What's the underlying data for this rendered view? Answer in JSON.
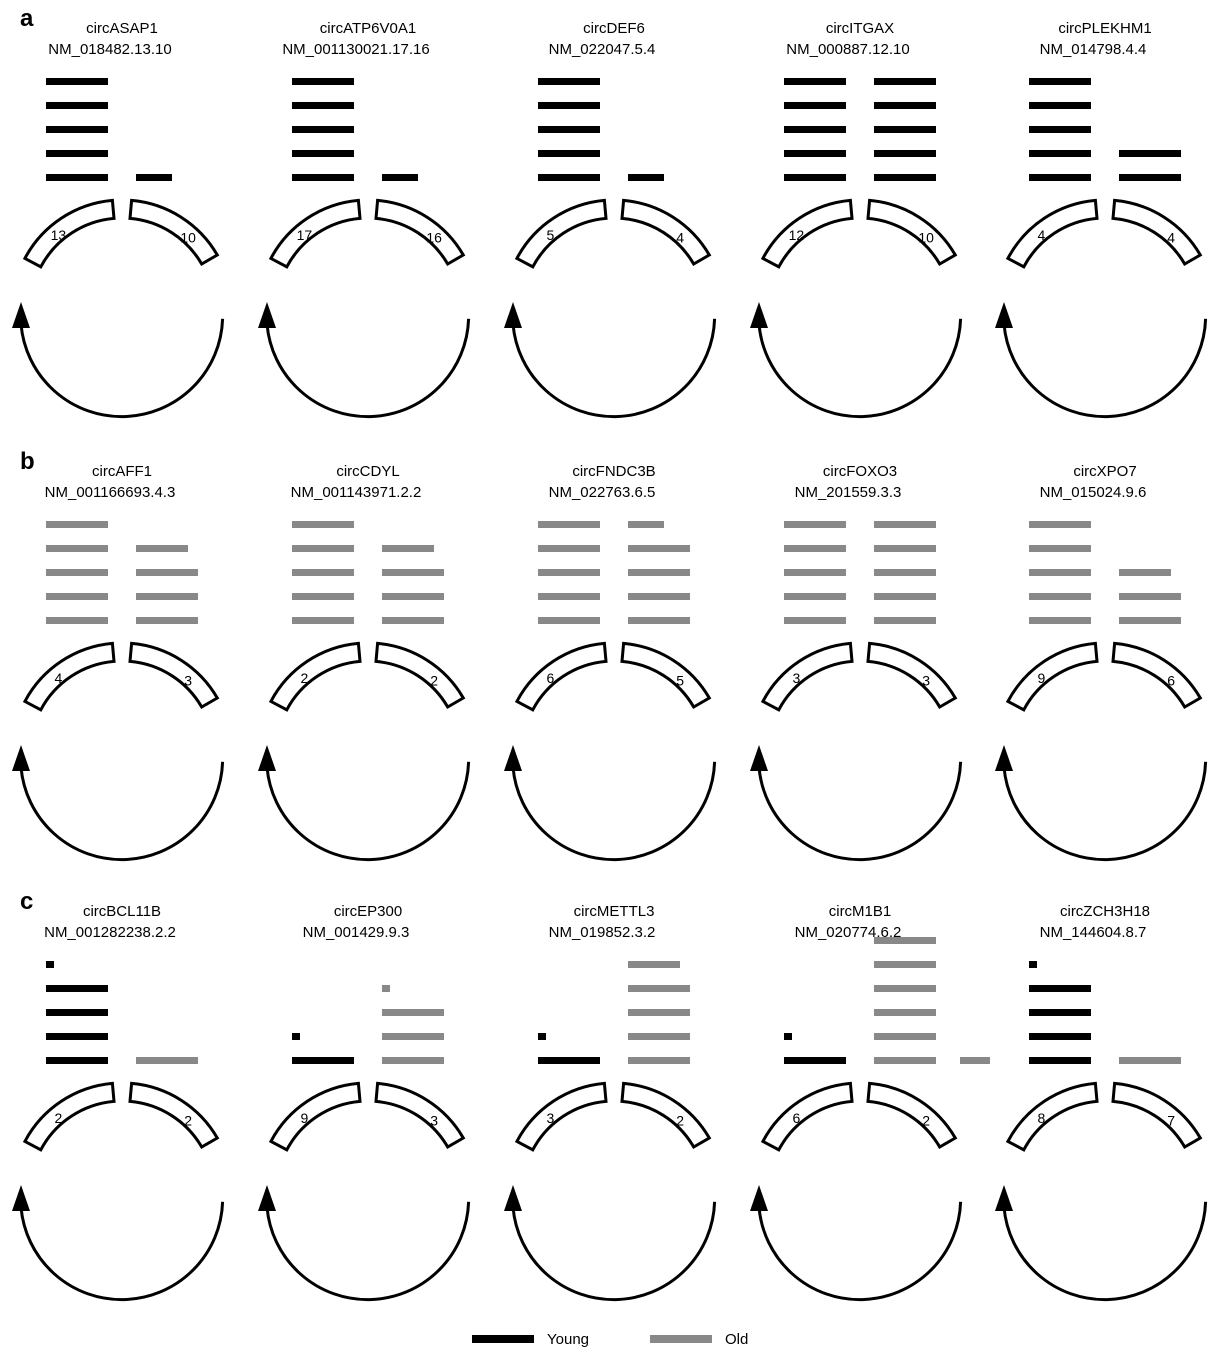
{
  "colors": {
    "young": "#000000",
    "old": "#888888",
    "outline": "#000000"
  },
  "legend": {
    "young_label": "Young",
    "old_label": "Old"
  },
  "panels": [
    {
      "letter": "a",
      "circs": [
        {
          "name": "circASAP1",
          "id": "NM_018482.13.10",
          "left_exon": "13",
          "right_exon": "10",
          "left_bars": [
            {
              "c": "young",
              "w": "full"
            },
            {
              "c": "young",
              "w": "full"
            },
            {
              "c": "young",
              "w": "full"
            },
            {
              "c": "young",
              "w": "full"
            },
            {
              "c": "young",
              "w": "full"
            }
          ],
          "right_bars": [
            {
              "c": "young",
              "w": "short"
            }
          ]
        },
        {
          "name": "circATP6V0A1",
          "id": "NM_001130021.17.16",
          "left_exon": "17",
          "right_exon": "16",
          "left_bars": [
            {
              "c": "young",
              "w": "full"
            },
            {
              "c": "young",
              "w": "full"
            },
            {
              "c": "young",
              "w": "full"
            },
            {
              "c": "young",
              "w": "full"
            },
            {
              "c": "young",
              "w": "full"
            }
          ],
          "right_bars": [
            {
              "c": "young",
              "w": "short"
            }
          ]
        },
        {
          "name": "circDEF6",
          "id": "NM_022047.5.4",
          "left_exon": "5",
          "right_exon": "4",
          "left_bars": [
            {
              "c": "young",
              "w": "full"
            },
            {
              "c": "young",
              "w": "full"
            },
            {
              "c": "young",
              "w": "full"
            },
            {
              "c": "young",
              "w": "full"
            },
            {
              "c": "young",
              "w": "full"
            }
          ],
          "right_bars": [
            {
              "c": "young",
              "w": "short"
            }
          ]
        },
        {
          "name": "circITGAX",
          "id": "NM_000887.12.10",
          "left_exon": "12",
          "right_exon": "10",
          "left_bars": [
            {
              "c": "young",
              "w": "full"
            },
            {
              "c": "young",
              "w": "full"
            },
            {
              "c": "young",
              "w": "full"
            },
            {
              "c": "young",
              "w": "full"
            },
            {
              "c": "young",
              "w": "full"
            }
          ],
          "right_bars": [
            {
              "c": "young",
              "w": "full"
            },
            {
              "c": "young",
              "w": "full"
            },
            {
              "c": "young",
              "w": "full"
            },
            {
              "c": "young",
              "w": "full"
            },
            {
              "c": "young",
              "w": "full"
            }
          ]
        },
        {
          "name": "circPLEKHM1",
          "id": "NM_014798.4.4",
          "left_exon": "4",
          "right_exon": "4",
          "left_bars": [
            {
              "c": "young",
              "w": "full"
            },
            {
              "c": "young",
              "w": "full"
            },
            {
              "c": "young",
              "w": "full"
            },
            {
              "c": "young",
              "w": "full"
            },
            {
              "c": "young",
              "w": "full"
            }
          ],
          "right_bars": [
            {
              "c": "young",
              "w": "full"
            },
            {
              "c": "young",
              "w": "full"
            }
          ]
        }
      ]
    },
    {
      "letter": "b",
      "circs": [
        {
          "name": "circAFF1",
          "id": "NM_001166693.4.3",
          "left_exon": "4",
          "right_exon": "3",
          "left_bars": [
            {
              "c": "old",
              "w": "full"
            },
            {
              "c": "old",
              "w": "full"
            },
            {
              "c": "old",
              "w": "full"
            },
            {
              "c": "old",
              "w": "full"
            },
            {
              "c": "old",
              "w": "full"
            }
          ],
          "right_bars": [
            {
              "c": "old",
              "w": "full"
            },
            {
              "c": "old",
              "w": "full"
            },
            {
              "c": "old",
              "w": "full"
            },
            {
              "c": "old",
              "w": "mid"
            }
          ]
        },
        {
          "name": "circCDYL",
          "id": "NM_001143971.2.2",
          "left_exon": "2",
          "right_exon": "2",
          "left_bars": [
            {
              "c": "old",
              "w": "full"
            },
            {
              "c": "old",
              "w": "full"
            },
            {
              "c": "old",
              "w": "full"
            },
            {
              "c": "old",
              "w": "full"
            },
            {
              "c": "old",
              "w": "full"
            }
          ],
          "right_bars": [
            {
              "c": "old",
              "w": "full"
            },
            {
              "c": "old",
              "w": "full"
            },
            {
              "c": "old",
              "w": "full"
            },
            {
              "c": "old",
              "w": "mid"
            }
          ]
        },
        {
          "name": "circFNDC3B",
          "id": "NM_022763.6.5",
          "left_exon": "6",
          "right_exon": "5",
          "left_bars": [
            {
              "c": "old",
              "w": "full"
            },
            {
              "c": "old",
              "w": "full"
            },
            {
              "c": "old",
              "w": "full"
            },
            {
              "c": "old",
              "w": "full"
            },
            {
              "c": "old",
              "w": "full"
            }
          ],
          "right_bars": [
            {
              "c": "old",
              "w": "full"
            },
            {
              "c": "old",
              "w": "full"
            },
            {
              "c": "old",
              "w": "full"
            },
            {
              "c": "old",
              "w": "full"
            },
            {
              "c": "old",
              "w": "short"
            }
          ]
        },
        {
          "name": "circFOXO3",
          "id": "NM_201559.3.3",
          "left_exon": "3",
          "right_exon": "3",
          "left_bars": [
            {
              "c": "old",
              "w": "full"
            },
            {
              "c": "old",
              "w": "full"
            },
            {
              "c": "old",
              "w": "full"
            },
            {
              "c": "old",
              "w": "full"
            },
            {
              "c": "old",
              "w": "full"
            }
          ],
          "right_bars": [
            {
              "c": "old",
              "w": "full"
            },
            {
              "c": "old",
              "w": "full"
            },
            {
              "c": "old",
              "w": "full"
            },
            {
              "c": "old",
              "w": "full"
            },
            {
              "c": "old",
              "w": "full"
            }
          ]
        },
        {
          "name": "circXPO7",
          "id": "NM_015024.9.6",
          "left_exon": "9",
          "right_exon": "6",
          "left_bars": [
            {
              "c": "old",
              "w": "full"
            },
            {
              "c": "old",
              "w": "full"
            },
            {
              "c": "old",
              "w": "full"
            },
            {
              "c": "old",
              "w": "full"
            },
            {
              "c": "old",
              "w": "full"
            }
          ],
          "right_bars": [
            {
              "c": "old",
              "w": "full"
            },
            {
              "c": "old",
              "w": "full"
            },
            {
              "c": "old",
              "w": "mid"
            }
          ]
        }
      ]
    },
    {
      "letter": "c",
      "circs": [
        {
          "name": "circBCL11B",
          "id": "NM_001282238.2.2",
          "left_exon": "2",
          "right_exon": "2",
          "left_bars": [
            {
              "c": "young",
              "w": "full"
            },
            {
              "c": "young",
              "w": "full"
            },
            {
              "c": "young",
              "w": "full"
            },
            {
              "c": "young",
              "w": "full"
            },
            {
              "c": "young",
              "w": "dot"
            }
          ],
          "right_bars": [
            {
              "c": "old",
              "w": "full"
            }
          ]
        },
        {
          "name": "circEP300",
          "id": "NM_001429.9.3",
          "left_exon": "9",
          "right_exon": "3",
          "left_bars": [
            {
              "c": "young",
              "w": "full"
            },
            {
              "c": "young",
              "w": "dot"
            }
          ],
          "right_bars": [
            {
              "c": "old",
              "w": "full"
            },
            {
              "c": "old",
              "w": "full"
            },
            {
              "c": "old",
              "w": "full"
            },
            {
              "c": "old",
              "w": "dot"
            }
          ]
        },
        {
          "name": "circMETTL3",
          "id": "NM_019852.3.2",
          "left_exon": "3",
          "right_exon": "2",
          "left_bars": [
            {
              "c": "young",
              "w": "full"
            },
            {
              "c": "young",
              "w": "dot"
            }
          ],
          "right_bars": [
            {
              "c": "old",
              "w": "full"
            },
            {
              "c": "old",
              "w": "full"
            },
            {
              "c": "old",
              "w": "full"
            },
            {
              "c": "old",
              "w": "full"
            },
            {
              "c": "old",
              "w": "mid"
            }
          ]
        },
        {
          "name": "circM1B1",
          "id": "NM_020774.6.2",
          "left_exon": "6",
          "right_exon": "2",
          "left_bars": [
            {
              "c": "young",
              "w": "full"
            },
            {
              "c": "young",
              "w": "dot"
            }
          ],
          "right_bars": [
            {
              "c": "old",
              "w": "full"
            },
            {
              "c": "old",
              "w": "full"
            },
            {
              "c": "old",
              "w": "full"
            },
            {
              "c": "old",
              "w": "full"
            },
            {
              "c": "old",
              "w": "full"
            },
            {
              "c": "old",
              "w": "full"
            }
          ],
          "right_extra": [
            {
              "c": "old",
              "w": "half"
            }
          ]
        },
        {
          "name": "circZCH3H18",
          "id": "NM_144604.8.7",
          "left_exon": "8",
          "right_exon": "7",
          "left_bars": [
            {
              "c": "young",
              "w": "full"
            },
            {
              "c": "young",
              "w": "full"
            },
            {
              "c": "young",
              "w": "full"
            },
            {
              "c": "young",
              "w": "full"
            },
            {
              "c": "young",
              "w": "dot"
            }
          ],
          "right_bars": [
            {
              "c": "old",
              "w": "full"
            }
          ]
        }
      ]
    }
  ]
}
